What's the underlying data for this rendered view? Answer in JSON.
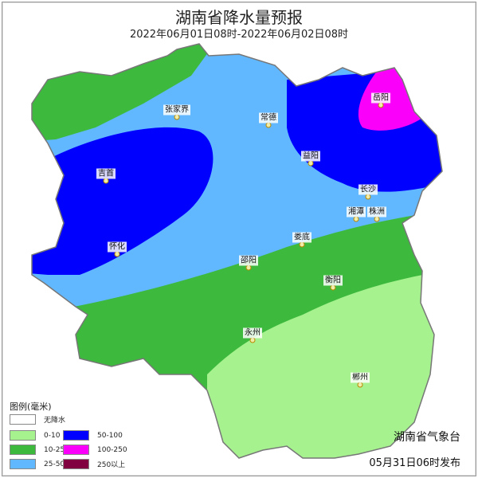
{
  "header": {
    "title": "湖南省降水量预报",
    "period": "2022年06月01日08时-2022年06月02日08时"
  },
  "cities": [
    "张家界",
    "常德",
    "岳阳",
    "益阳",
    "吉首",
    "长沙",
    "湘潭",
    "株洲",
    "娄底",
    "怀化",
    "邵阳",
    "衡阳",
    "永州",
    "郴州"
  ],
  "legend": {
    "title": "图例(毫米)",
    "items": [
      {
        "label": "无降水",
        "color": "#ffffff"
      },
      {
        "label": "0-10",
        "color": "#a6f28f"
      },
      {
        "label": "10-25",
        "color": "#3dba3d"
      },
      {
        "label": "25-50",
        "color": "#61b8ff"
      },
      {
        "label": "50-100",
        "color": "#0000ff"
      },
      {
        "label": "100-250",
        "color": "#fa00fa"
      },
      {
        "label": "250以上",
        "color": "#800040"
      }
    ]
  },
  "footer": {
    "issuer": "湖南省气象台",
    "issued": "05月31日06时发布"
  }
}
